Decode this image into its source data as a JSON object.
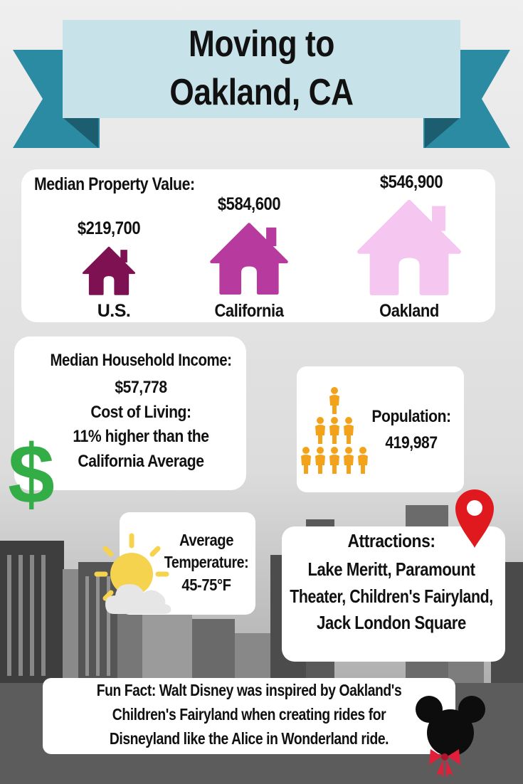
{
  "title": {
    "line1": "Moving to",
    "line2": "Oakland, CA"
  },
  "property": {
    "heading": "Median Property Value:",
    "us": {
      "value": "$219,700",
      "label": "U.S."
    },
    "california": {
      "value": "$584,600",
      "label": "California"
    },
    "oakland": {
      "value": "$546,900",
      "label": "Oakland"
    }
  },
  "income": {
    "heading": "Median Household Income:",
    "value": "$57,778",
    "cost_heading": "Cost of Living:",
    "cost_line1": "11% higher than the",
    "cost_line2": "California Average"
  },
  "population": {
    "heading": "Population:",
    "value": "419,987"
  },
  "temperature": {
    "line1": "Average",
    "line2": "Temperature:",
    "value": "45-75°F"
  },
  "attractions": {
    "heading": "Attractions:",
    "line1": "Lake Meritt, Paramount",
    "line2": "Theater, Children's Fairyland,",
    "line3": "Jack London Square"
  },
  "fun_fact": {
    "line1": "Fun Fact: Walt Disney was inspired by Oakland's",
    "line2": "Children's Fairyland when creating rides for",
    "line3": "Disneyland like the Alice in Wonderland ride."
  },
  "colors": {
    "ribbon": "#2a8ba3",
    "ribbon_dark": "#1c5e70",
    "banner": "#c8e2ea",
    "house_us": "#7d1152",
    "house_ca": "#b73a9f",
    "house_oak": "#f5c6ef",
    "people": "#f2a31b",
    "dollar": "#33ad45",
    "pin": "#e0191e"
  },
  "icons": [
    "house-icon",
    "person-icon",
    "dollar-icon",
    "sun-cloud-icon",
    "map-pin-icon",
    "mickey-ears-icon"
  ]
}
